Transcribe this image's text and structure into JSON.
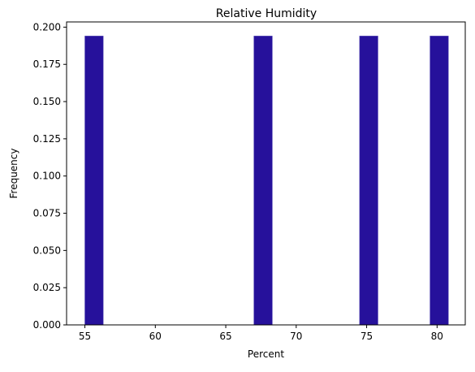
{
  "chart_data": {
    "type": "bar",
    "title": "Relative Humidity",
    "xlabel": "Percent",
    "ylabel": "Frequency",
    "xlim": [
      53.7,
      82.0
    ],
    "ylim": [
      0,
      0.2035
    ],
    "xticks": [
      55,
      60,
      65,
      70,
      75,
      80
    ],
    "yticks": [
      0.0,
      0.025,
      0.05,
      0.075,
      0.1,
      0.125,
      0.15,
      0.175,
      0.2
    ],
    "ytick_labels": [
      "0.000",
      "0.025",
      "0.050",
      "0.075",
      "0.100",
      "0.125",
      "0.150",
      "0.175",
      "0.200"
    ],
    "bars": [
      {
        "x_start": 55.0,
        "x_end": 56.3,
        "value": 0.194
      },
      {
        "x_start": 67.0,
        "x_end": 68.3,
        "value": 0.194
      },
      {
        "x_start": 74.5,
        "x_end": 75.8,
        "value": 0.194
      },
      {
        "x_start": 79.5,
        "x_end": 80.8,
        "value": 0.194
      }
    ],
    "bar_color": "#26119b",
    "grid": false
  }
}
